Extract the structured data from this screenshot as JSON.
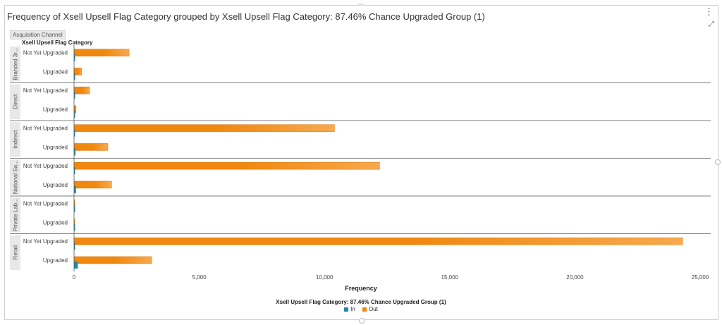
{
  "title": "Frequency of Xsell Upsell Flag Category grouped by Xsell Upsell Flag Category: 87.46% Chance Upgraded Group (1)",
  "group_axis_label": "Acquisition Channel",
  "category_axis_label": "Xsell Upsell Flag Category",
  "colors": {
    "in": "#1f8aa8",
    "out": "#f0880f",
    "out_light": "#f7a94e",
    "divider": "#555555",
    "group_band": "#e8e8e8"
  },
  "chart_data": {
    "type": "bar",
    "orientation": "horizontal",
    "xlabel": "Frequency",
    "xlim": [
      0,
      25000
    ],
    "xticks": [
      "0",
      "5,000",
      "10,000",
      "15,000",
      "20,000",
      "25,000"
    ],
    "xtick_values": [
      0,
      5000,
      10000,
      15000,
      20000,
      25000
    ],
    "legend_title": "Xsell Upsell Flag Category: 87.46% Chance Upgraded Group (1)",
    "legend_placement": "bottom-center",
    "series_names": [
      "In",
      "Out"
    ],
    "groups": [
      {
        "name": "Branded 3r...",
        "categories": [
          {
            "label": "Not Yet Upgraded",
            "in": 20,
            "out": 2200
          },
          {
            "label": "Upgraded",
            "in": 20,
            "out": 300
          }
        ]
      },
      {
        "name": "Direct",
        "categories": [
          {
            "label": "Not Yet Upgraded",
            "in": 20,
            "out": 620
          },
          {
            "label": "Upgraded",
            "in": 10,
            "out": 80
          }
        ]
      },
      {
        "name": "Indirect",
        "categories": [
          {
            "label": "Not Yet Upgraded",
            "in": 30,
            "out": 10400
          },
          {
            "label": "Upgraded",
            "in": 60,
            "out": 1350
          }
        ]
      },
      {
        "name": "National Sa...",
        "categories": [
          {
            "label": "Not Yet Upgraded",
            "in": 30,
            "out": 12200
          },
          {
            "label": "Upgraded",
            "in": 80,
            "out": 1500
          }
        ]
      },
      {
        "name": "Private Lab...",
        "categories": [
          {
            "label": "Not Yet Upgraded",
            "in": 5,
            "out": 30
          },
          {
            "label": "Upgraded",
            "in": 5,
            "out": 20
          }
        ]
      },
      {
        "name": "Retail",
        "categories": [
          {
            "label": "Not Yet Upgraded",
            "in": 30,
            "out": 24300
          },
          {
            "label": "Upgraded",
            "in": 150,
            "out": 3100
          }
        ]
      }
    ]
  }
}
